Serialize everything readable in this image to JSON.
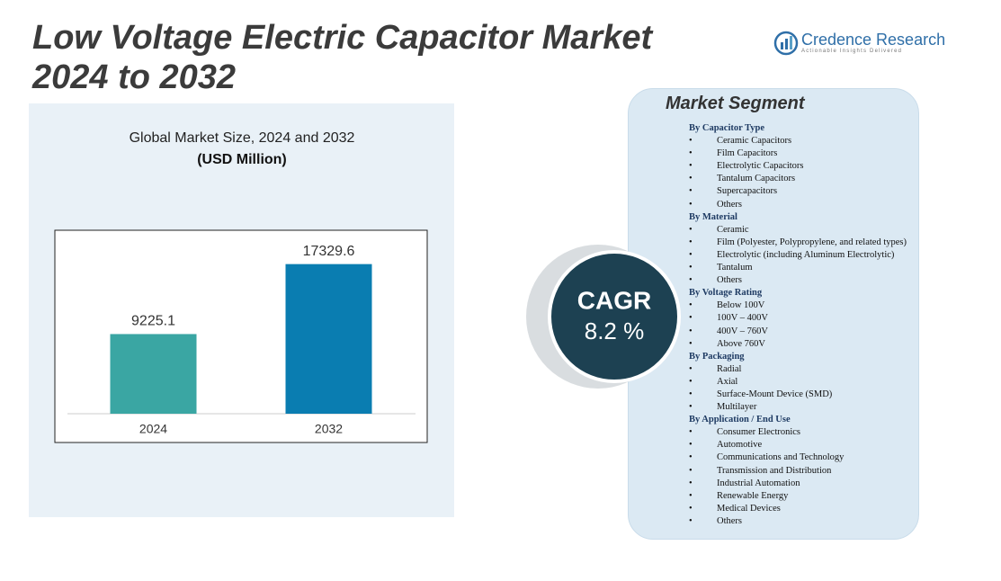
{
  "title_lines": [
    "Low Voltage Electric Capacitor Market",
    "2024 to 2032"
  ],
  "logo": {
    "name": "Credence Research",
    "tagline": "Actionable Insights Delivered"
  },
  "chart_data": {
    "type": "bar",
    "title": "Global Market Size, 2024 and 2032",
    "subtitle": "(USD Million)",
    "categories": [
      "2024",
      "2032"
    ],
    "values": [
      9225.1,
      17329.6
    ],
    "colors": [
      "#3aa6a3",
      "#0a7db1"
    ],
    "ylim": [
      0,
      20000
    ]
  },
  "cagr": {
    "label": "CAGR",
    "value": "8.2 %"
  },
  "segments": {
    "title": "Market Segment",
    "groups": [
      {
        "heading": "By Capacitor  Type",
        "items": [
          "Ceramic  Capacitors",
          "Film  Capacitors",
          "Electrolytic  Capacitors",
          "Tantalum  Capacitors",
          "Supercapacitors",
          "Others"
        ]
      },
      {
        "heading": "By Material",
        "items": [
          "Ceramic",
          "Film  (Polyester,  Polypropylene,  and related types)",
          "Electrolytic  (including  Aluminum  Electrolytic)",
          "Tantalum",
          "Others"
        ]
      },
      {
        "heading": "By Voltage Rating",
        "items": [
          "Below  100V",
          "100V  – 400V",
          "400V  – 760V",
          "Above 760V"
        ]
      },
      {
        "heading": "By Packaging",
        "items": [
          "Radial",
          "Axial",
          "Surface-Mount Device  (SMD)",
          "Multilayer"
        ]
      },
      {
        "heading": "By Application  / End  Use",
        "items": [
          "Consumer Electronics",
          "Automotive",
          "Communications  and Technology",
          "Transmission and Distribution",
          "Industrial  Automation",
          "Renewable  Energy",
          "Medical Devices",
          "Others"
        ]
      }
    ]
  }
}
